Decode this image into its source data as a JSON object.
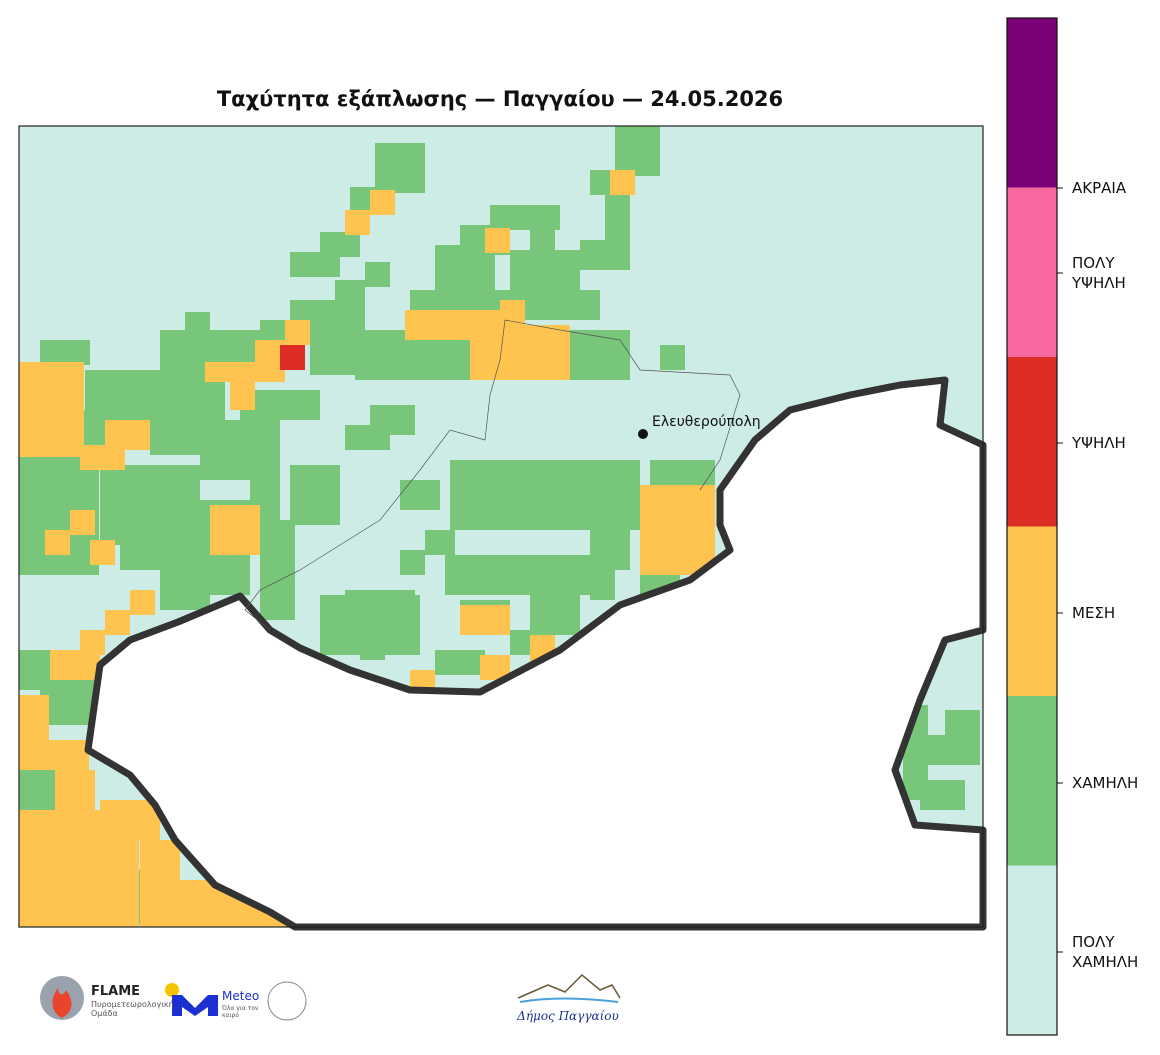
{
  "title": "Ταχύτητα εξάπλωσης — Παγγαίου — 24.05.2026",
  "city": {
    "name": "Ελευθερούπολη"
  },
  "legend": {
    "levels": [
      {
        "label": "ΠΟΛΥ ΧΑΜΗΛΗ",
        "color": "#cdece6"
      },
      {
        "label": "ΧΑΜΗΛΗ",
        "color": "#78c679"
      },
      {
        "label": "ΜΕΣΗ",
        "color": "#fec44f"
      },
      {
        "label": "ΥΨΗΛΗ",
        "color": "#de2d26"
      },
      {
        "label": "ΠΟΛΥ ΥΨΗΛΗ",
        "color": "#f768a1"
      },
      {
        "label": "ΑΚΡΑΙΑ",
        "color": "#7a0177"
      }
    ]
  },
  "logos": {
    "flame_name": "FLAME",
    "flame_subtitle": "Πυρομετεωρολογική Ομάδα",
    "meteo_name": "Meteo",
    "meteo_tagline": "Όλα για τον καιρό",
    "municipality": "Δήμος Παγγαίου"
  }
}
